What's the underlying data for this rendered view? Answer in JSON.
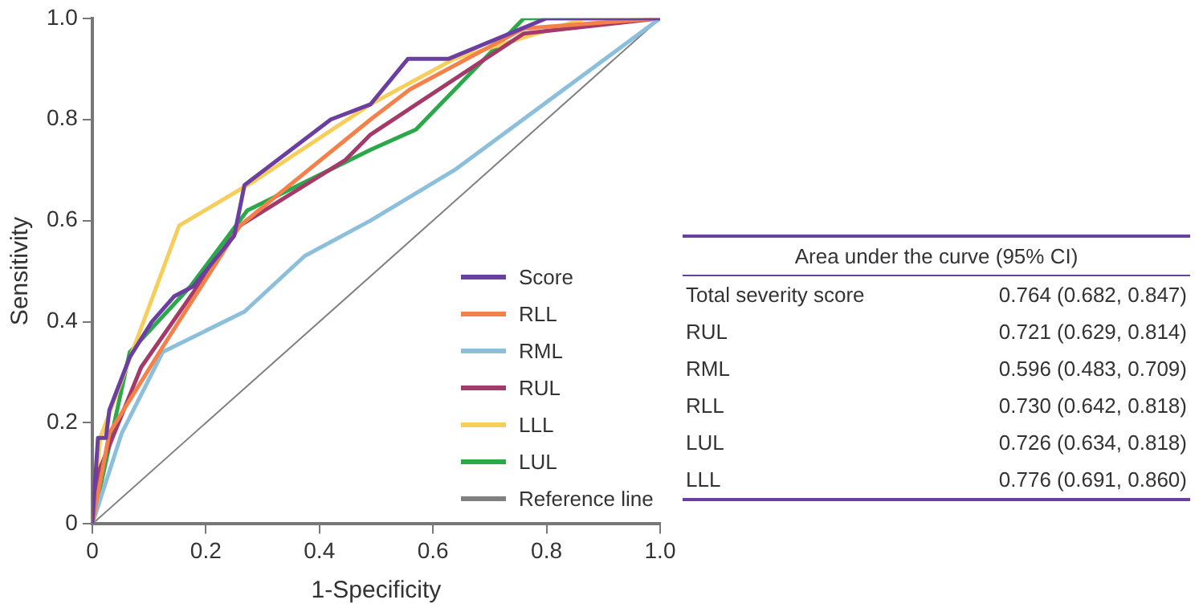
{
  "chart_data": {
    "type": "line",
    "xlabel": "1-Specificity",
    "ylabel": "Sensitivity",
    "xlim": [
      0,
      1
    ],
    "ylim": [
      0,
      1
    ],
    "xticks": [
      0,
      0.2,
      0.4,
      0.6,
      0.8,
      {
        "value": 1,
        "label": "1.0"
      }
    ],
    "yticks": [
      0,
      0.2,
      0.4,
      0.6,
      0.8,
      {
        "value": 1,
        "label": "1.0"
      }
    ],
    "grid": false,
    "legend": "bottom right",
    "marker": "none",
    "line_style": "solid",
    "series": [
      {
        "name": "Score",
        "color": "#6b3fa0",
        "x": [
          0,
          0.01,
          0.024,
          0.03,
          0.066,
          0.105,
          0.144,
          0.178,
          0.25,
          0.268,
          0.42,
          0.49,
          0.556,
          0.628,
          0.8,
          1
        ],
        "values": [
          0,
          0.17,
          0.17,
          0.225,
          0.33,
          0.4,
          0.45,
          0.47,
          0.57,
          0.67,
          0.8,
          0.83,
          0.92,
          0.92,
          1,
          1
        ]
      },
      {
        "name": "RLL",
        "color": "#f4804a",
        "x": [
          0,
          0.03,
          0.124,
          0.26,
          0.49,
          0.56,
          0.76,
          1
        ],
        "values": [
          0,
          0.18,
          0.35,
          0.59,
          0.8,
          0.86,
          0.98,
          1
        ]
      },
      {
        "name": "RML",
        "color": "#8bbfdc",
        "x": [
          0,
          0.052,
          0.124,
          0.268,
          0.374,
          0.49,
          0.638,
          1
        ],
        "values": [
          0,
          0.18,
          0.34,
          0.42,
          0.53,
          0.6,
          0.7,
          1
        ]
      },
      {
        "name": "RUL",
        "color": "#a33a6a",
        "x": [
          0,
          0.01,
          0.086,
          0.26,
          0.446,
          0.49,
          0.76,
          1
        ],
        "values": [
          0,
          0.1,
          0.31,
          0.59,
          0.72,
          0.77,
          0.97,
          1
        ]
      },
      {
        "name": "LLL",
        "color": "#f7ce5b",
        "x": [
          0,
          0.014,
          0.153,
          0.288,
          0.49,
          0.638,
          0.87,
          1
        ],
        "values": [
          0,
          0.17,
          0.59,
          0.68,
          0.83,
          0.92,
          1,
          1
        ]
      },
      {
        "name": "LUL",
        "color": "#2aa84a",
        "x": [
          0,
          0.066,
          0.173,
          0.273,
          0.49,
          0.57,
          0.76,
          1
        ],
        "values": [
          0,
          0.34,
          0.47,
          0.62,
          0.74,
          0.78,
          1,
          1
        ]
      },
      {
        "name": "Reference line",
        "color": "#808080",
        "x": [
          0,
          1
        ],
        "values": [
          0,
          1
        ]
      }
    ],
    "annotations": [
      "Area under the curve (95% CI)",
      "Total severity score",
      "0.764 (0.682, 0.847)",
      "RUL",
      "0.721 (0.629, 0.814)",
      "RML",
      "0.596 (0.483, 0.709)",
      "RLL",
      "0.730 (0.642, 0.818)",
      "LUL",
      "0.726 (0.634, 0.818)",
      "LLL",
      "0.776 (0.691, 0.860)"
    ]
  }
}
